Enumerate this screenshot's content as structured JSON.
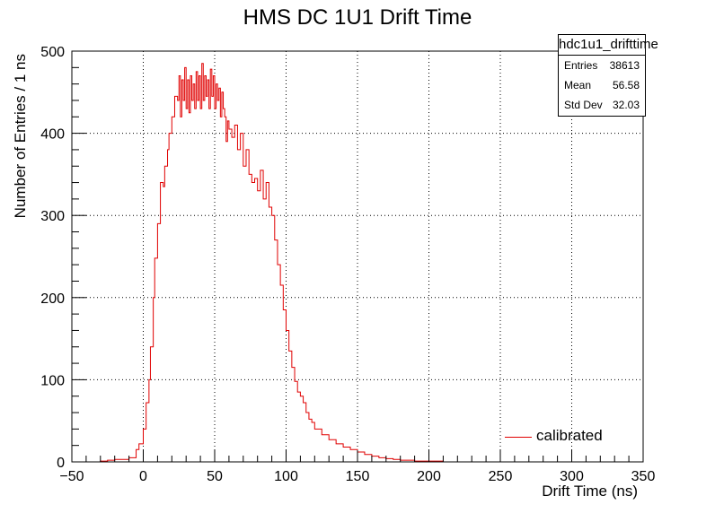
{
  "chart_data": {
    "type": "line",
    "title": "HMS DC 1U1 Drift Time",
    "xlabel": "Drift Time (ns)",
    "ylabel": "Number of Entries / 1 ns",
    "xlim": [
      -50,
      350
    ],
    "ylim": [
      0,
      500
    ],
    "x_ticks": [
      -50,
      0,
      50,
      100,
      150,
      200,
      250,
      300,
      350
    ],
    "y_ticks": [
      0,
      100,
      200,
      300,
      400,
      500
    ],
    "grid": true,
    "line_color": "#e00000",
    "histogram_name": "hdc1u1_drifttime",
    "stats": [
      {
        "label": "Entries",
        "value": "38613"
      },
      {
        "label": "Mean",
        "value": "56.58"
      },
      {
        "label": "Std Dev",
        "value": "32.03"
      }
    ],
    "legend": {
      "label": "calibrated",
      "position": "bottom-right"
    },
    "series": [
      {
        "name": "calibrated",
        "x": [
          -40,
          -30,
          -25,
          -20,
          -15,
          -10,
          -5,
          -3,
          0,
          2,
          4,
          5,
          7,
          8,
          10,
          12,
          14,
          15,
          17,
          18,
          20,
          22,
          24,
          25,
          26,
          27,
          28,
          29,
          30,
          31,
          32,
          33,
          34,
          35,
          36,
          37,
          38,
          39,
          40,
          41,
          42,
          43,
          44,
          45,
          46,
          47,
          48,
          49,
          50,
          51,
          52,
          53,
          54,
          55,
          56,
          57,
          58,
          59,
          60,
          62,
          64,
          66,
          68,
          70,
          72,
          74,
          76,
          78,
          80,
          82,
          84,
          86,
          88,
          90,
          92,
          94,
          96,
          98,
          100,
          102,
          104,
          106,
          108,
          110,
          112,
          114,
          116,
          118,
          120,
          125,
          130,
          135,
          140,
          145,
          150,
          155,
          160,
          165,
          170,
          175,
          180,
          185,
          190,
          195,
          200,
          210,
          230,
          260,
          300
        ],
        "values": [
          0,
          1,
          2,
          3,
          3,
          5,
          15,
          22,
          40,
          72,
          100,
          140,
          200,
          248,
          290,
          340,
          335,
          360,
          380,
          400,
          420,
          445,
          440,
          470,
          420,
          465,
          440,
          480,
          430,
          465,
          425,
          470,
          440,
          460,
          430,
          475,
          440,
          470,
          430,
          485,
          440,
          470,
          445,
          465,
          430,
          478,
          445,
          470,
          430,
          460,
          440,
          455,
          420,
          450,
          430,
          420,
          390,
          415,
          405,
          395,
          410,
          380,
          400,
          360,
          380,
          350,
          340,
          345,
          330,
          355,
          320,
          340,
          310,
          300,
          270,
          240,
          215,
          185,
          160,
          135,
          115,
          98,
          85,
          80,
          72,
          60,
          52,
          48,
          40,
          33,
          27,
          22,
          18,
          15,
          12,
          9,
          7,
          5,
          4,
          3,
          2,
          2,
          1,
          1,
          1,
          0,
          0,
          0,
          0
        ]
      }
    ]
  }
}
